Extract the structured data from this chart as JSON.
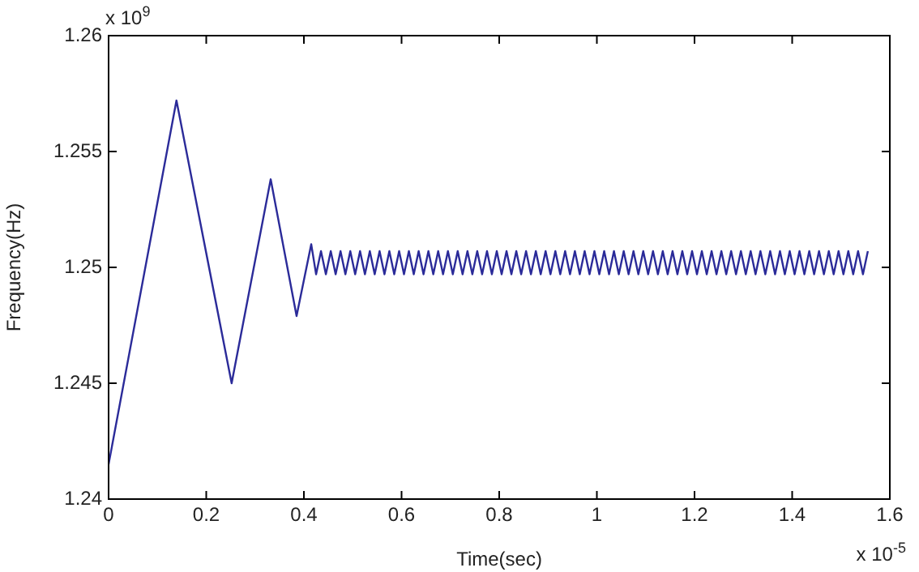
{
  "chart_data": {
    "type": "line",
    "xlabel": "Time(sec)",
    "ylabel": "Frequency(Hz)",
    "annotations": [
      "x 10$^{9}$",
      "x 10$^{-5}$"
    ],
    "xlim": [
      0,
      1.6
    ],
    "xticks": [
      0,
      0.2,
      0.4,
      0.6,
      0.8,
      1,
      1.2,
      1.4,
      1.6
    ],
    "ylim": [
      1.24,
      1.26
    ],
    "yticks": [
      1.24,
      1.245,
      1.25,
      1.255,
      1.26
    ],
    "grid": false,
    "legend": false,
    "marker": "none",
    "line_style": "solid",
    "series": [
      {
        "color": "#2b2b99",
        "x": [
          0,
          0.139,
          0.252,
          0.332,
          0.385,
          0.415,
          0.425,
          0.435,
          0.445,
          0.455,
          0.465,
          0.475,
          0.485,
          0.495,
          0.505,
          0.515,
          0.525,
          0.535,
          0.545,
          0.555,
          0.565,
          0.575,
          0.585,
          0.595,
          0.605,
          0.615,
          0.625,
          0.635,
          0.645,
          0.655,
          0.665,
          0.675,
          0.685,
          0.695,
          0.705,
          0.715,
          0.725,
          0.735,
          0.745,
          0.755,
          0.765,
          0.775,
          0.785,
          0.795,
          0.805,
          0.815,
          0.825,
          0.835,
          0.845,
          0.855,
          0.865,
          0.875,
          0.885,
          0.895,
          0.905,
          0.915,
          0.925,
          0.935,
          0.945,
          0.955,
          0.965,
          0.975,
          0.985,
          0.995,
          1.005,
          1.015,
          1.025,
          1.035,
          1.045,
          1.055,
          1.065,
          1.075,
          1.085,
          1.095,
          1.105,
          1.115,
          1.125,
          1.135,
          1.145,
          1.155,
          1.165,
          1.175,
          1.185,
          1.195,
          1.205,
          1.215,
          1.225,
          1.235,
          1.245,
          1.255,
          1.265,
          1.275,
          1.285,
          1.295,
          1.305,
          1.315,
          1.325,
          1.335,
          1.345,
          1.355,
          1.365,
          1.375,
          1.385,
          1.395,
          1.405,
          1.415,
          1.425,
          1.435,
          1.445,
          1.455,
          1.465,
          1.475,
          1.485,
          1.495,
          1.505,
          1.515,
          1.525,
          1.535,
          1.545,
          1.555
        ],
        "values": [
          1.2415,
          1.2572,
          1.245,
          1.2538,
          1.2479,
          1.251,
          1.2497,
          1.2507,
          1.2497,
          1.2507,
          1.2497,
          1.2507,
          1.2497,
          1.2507,
          1.2497,
          1.2507,
          1.2497,
          1.2507,
          1.2497,
          1.2507,
          1.2497,
          1.2507,
          1.2497,
          1.2507,
          1.2497,
          1.2507,
          1.2497,
          1.2507,
          1.2497,
          1.2507,
          1.2497,
          1.2507,
          1.2497,
          1.2507,
          1.2497,
          1.2507,
          1.2497,
          1.2507,
          1.2497,
          1.2507,
          1.2497,
          1.2507,
          1.2497,
          1.2507,
          1.2497,
          1.2507,
          1.2497,
          1.2507,
          1.2497,
          1.2507,
          1.2497,
          1.2507,
          1.2497,
          1.2507,
          1.2497,
          1.2507,
          1.2497,
          1.2507,
          1.2497,
          1.2507,
          1.2497,
          1.2507,
          1.2497,
          1.2507,
          1.2497,
          1.2507,
          1.2497,
          1.2507,
          1.2497,
          1.2507,
          1.2497,
          1.2507,
          1.2497,
          1.2507,
          1.2497,
          1.2507,
          1.2497,
          1.2507,
          1.2497,
          1.2507,
          1.2497,
          1.2507,
          1.2497,
          1.2507,
          1.2497,
          1.2507,
          1.2497,
          1.2507,
          1.2497,
          1.2507,
          1.2497,
          1.2507,
          1.2497,
          1.2507,
          1.2497,
          1.2507,
          1.2497,
          1.2507,
          1.2497,
          1.2507,
          1.2497,
          1.2507,
          1.2497,
          1.2507,
          1.2497,
          1.2507,
          1.2497,
          1.2507,
          1.2497,
          1.2507,
          1.2497,
          1.2507,
          1.2497,
          1.2507,
          1.2497,
          1.2507,
          1.2497,
          1.2507,
          1.2497,
          1.2507
        ]
      }
    ]
  }
}
